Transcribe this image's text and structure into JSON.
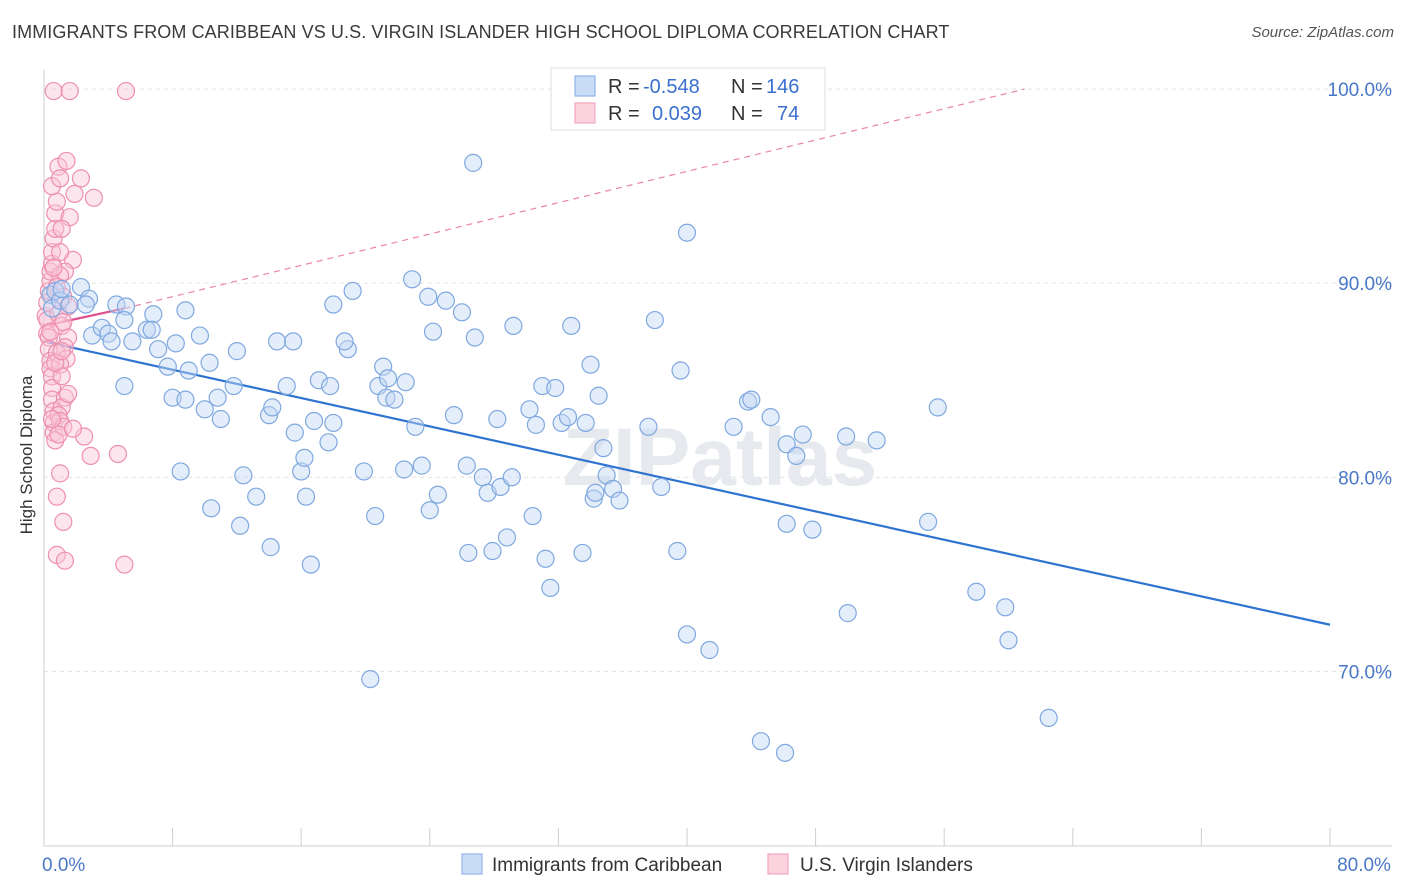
{
  "title": "IMMIGRANTS FROM CARIBBEAN VS U.S. VIRGIN ISLANDER HIGH SCHOOL DIPLOMA CORRELATION CHART",
  "source": "Source: ZipAtlas.com",
  "watermark": "ZIPatlas",
  "chart_data": {
    "type": "scatter",
    "ylabel": "High School Diploma",
    "xlabel": "",
    "xlim": [
      0,
      80
    ],
    "ylim": [
      61,
      101.5
    ],
    "x_tick_labels": [
      {
        "value": 0,
        "label": "0.0%"
      },
      {
        "value": 80,
        "label": "80.0%"
      }
    ],
    "y_tick_labels": [
      {
        "value": 100,
        "label": "100.0%"
      },
      {
        "value": 90,
        "label": "90.0%"
      },
      {
        "value": 80,
        "label": "80.0%"
      },
      {
        "value": 70,
        "label": "70.0%"
      }
    ],
    "legend": {
      "r_label": "R =",
      "n_label": "N =",
      "rows": [
        {
          "series": "Immigrants from Caribbean",
          "r": "-0.548",
          "n": "146"
        },
        {
          "series": "U.S. Virgin Islanders",
          "r": "0.039",
          "n": "74"
        }
      ]
    },
    "series": [
      {
        "name": "Immigrants from Caribbean",
        "color": "#8fb4e8",
        "line_color": "#2f74d0",
        "trend": {
          "x": [
            0,
            80
          ],
          "y": [
            87.0,
            72.4
          ]
        },
        "points": [
          [
            0.4,
            89.4
          ],
          [
            0.5,
            88.7
          ],
          [
            0.7,
            89.6
          ],
          [
            1.0,
            89.1
          ],
          [
            1.1,
            89.7
          ],
          [
            1.6,
            88.9
          ],
          [
            2.3,
            89.8
          ],
          [
            2.8,
            89.2
          ],
          [
            2.6,
            88.9
          ],
          [
            4.5,
            88.9
          ],
          [
            3.0,
            87.3
          ],
          [
            3.6,
            87.7
          ],
          [
            4.0,
            87.4
          ],
          [
            4.2,
            87.0
          ],
          [
            5.1,
            88.8
          ],
          [
            5.5,
            87.0
          ],
          [
            6.4,
            87.6
          ],
          [
            6.8,
            88.4
          ],
          [
            6.7,
            87.6
          ],
          [
            7.1,
            86.6
          ],
          [
            7.7,
            85.7
          ],
          [
            8.8,
            88.6
          ],
          [
            8.2,
            86.9
          ],
          [
            9.7,
            87.3
          ],
          [
            10.3,
            85.9
          ],
          [
            10.8,
            84.1
          ],
          [
            11.8,
            84.7
          ],
          [
            12.0,
            86.5
          ],
          [
            8.0,
            84.1
          ],
          [
            8.8,
            84.0
          ],
          [
            10.0,
            83.5
          ],
          [
            11.0,
            83.0
          ],
          [
            5.0,
            84.7
          ],
          [
            14.0,
            83.2
          ],
          [
            14.2,
            83.6
          ],
          [
            14.5,
            87.0
          ],
          [
            15.1,
            84.7
          ],
          [
            15.6,
            82.3
          ],
          [
            16.0,
            80.3
          ],
          [
            16.2,
            81.0
          ],
          [
            15.5,
            87.0
          ],
          [
            16.8,
            82.9
          ],
          [
            17.7,
            81.8
          ],
          [
            18.0,
            82.8
          ],
          [
            16.3,
            79.0
          ],
          [
            17.1,
            85.0
          ],
          [
            18.0,
            88.9
          ],
          [
            17.8,
            84.7
          ],
          [
            18.9,
            86.6
          ],
          [
            18.7,
            87.0
          ],
          [
            19.2,
            89.6
          ],
          [
            19.9,
            80.3
          ],
          [
            20.6,
            78.0
          ],
          [
            21.1,
            85.7
          ],
          [
            20.8,
            84.7
          ],
          [
            21.4,
            85.1
          ],
          [
            21.3,
            84.1
          ],
          [
            21.8,
            84.0
          ],
          [
            22.5,
            84.9
          ],
          [
            22.4,
            80.4
          ],
          [
            22.9,
            90.2
          ],
          [
            23.1,
            82.6
          ],
          [
            23.5,
            80.6
          ],
          [
            24.0,
            78.3
          ],
          [
            23.9,
            89.3
          ],
          [
            24.2,
            87.5
          ],
          [
            24.5,
            79.1
          ],
          [
            25.0,
            89.1
          ],
          [
            25.5,
            83.2
          ],
          [
            26.0,
            88.5
          ],
          [
            26.3,
            80.6
          ],
          [
            26.8,
            87.2
          ],
          [
            27.3,
            80.0
          ],
          [
            27.6,
            79.2
          ],
          [
            26.4,
            76.1
          ],
          [
            27.9,
            76.2
          ],
          [
            28.2,
            83.0
          ],
          [
            28.4,
            79.5
          ],
          [
            28.8,
            76.9
          ],
          [
            29.1,
            80.0
          ],
          [
            29.2,
            87.8
          ],
          [
            30.2,
            83.5
          ],
          [
            30.4,
            78.0
          ],
          [
            30.6,
            82.7
          ],
          [
            31.0,
            84.7
          ],
          [
            31.2,
            75.8
          ],
          [
            31.5,
            74.3
          ],
          [
            31.8,
            84.6
          ],
          [
            32.2,
            82.8
          ],
          [
            32.6,
            83.1
          ],
          [
            32.8,
            87.8
          ],
          [
            33.7,
            82.8
          ],
          [
            34.0,
            85.8
          ],
          [
            33.5,
            76.1
          ],
          [
            34.2,
            78.9
          ],
          [
            34.3,
            79.2
          ],
          [
            34.5,
            84.2
          ],
          [
            34.8,
            81.5
          ],
          [
            35.0,
            80.1
          ],
          [
            35.4,
            79.4
          ],
          [
            35.8,
            78.8
          ],
          [
            37.6,
            82.6
          ],
          [
            38.0,
            88.1
          ],
          [
            38.4,
            79.5
          ],
          [
            39.6,
            85.5
          ],
          [
            40.0,
            92.6
          ],
          [
            39.4,
            76.2
          ],
          [
            40.0,
            71.9
          ],
          [
            41.4,
            71.1
          ],
          [
            42.9,
            82.6
          ],
          [
            43.8,
            83.9
          ],
          [
            44.0,
            84.0
          ],
          [
            45.2,
            83.1
          ],
          [
            46.2,
            81.7
          ],
          [
            46.8,
            81.1
          ],
          [
            46.2,
            77.6
          ],
          [
            47.2,
            82.2
          ],
          [
            47.8,
            77.3
          ],
          [
            49.9,
            82.1
          ],
          [
            50.0,
            73.0
          ],
          [
            51.8,
            81.9
          ],
          [
            55.0,
            77.7
          ],
          [
            55.6,
            83.6
          ],
          [
            58.0,
            74.1
          ],
          [
            59.8,
            73.3
          ],
          [
            60.0,
            71.6
          ],
          [
            62.5,
            67.6
          ],
          [
            44.6,
            66.4
          ],
          [
            46.1,
            65.8
          ],
          [
            20.3,
            69.6
          ],
          [
            8.5,
            80.3
          ],
          [
            10.4,
            78.4
          ],
          [
            12.2,
            77.5
          ],
          [
            14.1,
            76.4
          ],
          [
            16.6,
            75.5
          ],
          [
            13.2,
            79.0
          ],
          [
            12.4,
            80.1
          ],
          [
            5.0,
            88.1
          ],
          [
            9.0,
            85.5
          ],
          [
            26.7,
            96.2
          ]
        ]
      },
      {
        "name": "U.S. Virgin Islanders",
        "color": "#f4a8c0",
        "line_color": "#e0508c",
        "trend": {
          "x": [
            0,
            5
          ],
          "y": [
            87.8,
            88.7
          ]
        },
        "trend_dash": {
          "x": [
            5,
            61
          ],
          "y": [
            88.7,
            100.0
          ]
        },
        "points": [
          [
            0.1,
            88.3
          ],
          [
            0.2,
            88.1
          ],
          [
            0.2,
            87.4
          ],
          [
            0.3,
            87.2
          ],
          [
            0.3,
            86.6
          ],
          [
            0.4,
            86.0
          ],
          [
            0.4,
            85.6
          ],
          [
            0.5,
            85.2
          ],
          [
            0.5,
            84.6
          ],
          [
            0.5,
            84.0
          ],
          [
            0.6,
            83.4
          ],
          [
            0.6,
            82.8
          ],
          [
            0.6,
            82.3
          ],
          [
            0.7,
            81.9
          ],
          [
            0.2,
            89.0
          ],
          [
            0.3,
            89.6
          ],
          [
            0.4,
            90.1
          ],
          [
            0.4,
            90.6
          ],
          [
            0.5,
            91.0
          ],
          [
            0.5,
            91.6
          ],
          [
            0.6,
            92.3
          ],
          [
            0.7,
            92.8
          ],
          [
            0.7,
            93.6
          ],
          [
            0.8,
            94.2
          ],
          [
            0.5,
            95.0
          ],
          [
            0.9,
            96.0
          ],
          [
            1.0,
            95.4
          ],
          [
            0.6,
            99.9
          ],
          [
            1.6,
            99.9
          ],
          [
            5.1,
            99.9
          ],
          [
            1.4,
            96.3
          ],
          [
            1.9,
            94.6
          ],
          [
            2.3,
            95.4
          ],
          [
            3.1,
            94.4
          ],
          [
            1.6,
            93.4
          ],
          [
            1.1,
            92.8
          ],
          [
            1.8,
            91.2
          ],
          [
            1.3,
            90.6
          ],
          [
            1.0,
            90.4
          ],
          [
            0.8,
            89.8
          ],
          [
            1.2,
            89.3
          ],
          [
            1.5,
            88.8
          ],
          [
            0.9,
            88.4
          ],
          [
            1.1,
            87.8
          ],
          [
            1.5,
            87.2
          ],
          [
            1.3,
            86.7
          ],
          [
            0.8,
            86.4
          ],
          [
            1.4,
            86.1
          ],
          [
            1.0,
            85.8
          ],
          [
            1.1,
            85.2
          ],
          [
            1.3,
            84.1
          ],
          [
            1.1,
            83.6
          ],
          [
            0.9,
            83.2
          ],
          [
            1.0,
            82.9
          ],
          [
            1.2,
            82.6
          ],
          [
            0.9,
            82.2
          ],
          [
            2.5,
            82.1
          ],
          [
            2.9,
            81.1
          ],
          [
            4.6,
            81.2
          ],
          [
            1.0,
            80.2
          ],
          [
            0.8,
            79.0
          ],
          [
            1.2,
            77.7
          ],
          [
            0.8,
            76.0
          ],
          [
            1.3,
            75.7
          ],
          [
            5.0,
            75.5
          ],
          [
            1.0,
            91.6
          ],
          [
            0.6,
            90.8
          ],
          [
            1.2,
            88.0
          ],
          [
            0.4,
            87.5
          ],
          [
            0.7,
            85.9
          ],
          [
            1.5,
            84.3
          ],
          [
            0.5,
            83.0
          ],
          [
            1.8,
            82.5
          ],
          [
            1.1,
            86.5
          ]
        ]
      }
    ]
  }
}
